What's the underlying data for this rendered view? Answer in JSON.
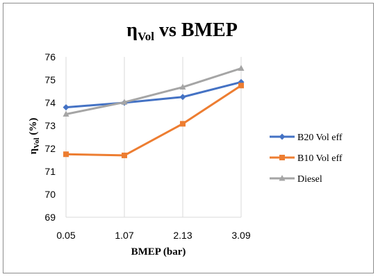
{
  "chart_data": {
    "type": "line",
    "title_main": "η",
    "title_sub": "Vol",
    "title_rest": " vs BMEP",
    "xlabel": "BMEP (bar)",
    "ylabel_main": "η",
    "ylabel_sub": "Vol",
    "ylabel_rest": " (%)",
    "categories": [
      "0.05",
      "1.07",
      "2.13",
      "3.09"
    ],
    "ylim": [
      69,
      76
    ],
    "yticks": [
      69,
      70,
      71,
      72,
      73,
      74,
      75,
      76
    ],
    "grid": "vertical",
    "legend_position": "right",
    "series": [
      {
        "name": "B20  Vol eff",
        "color": "#4472c4",
        "marker": "diamond",
        "values": [
          73.8,
          74.0,
          74.25,
          74.9
        ]
      },
      {
        "name": "B10 Vol eff",
        "color": "#ed7d31",
        "marker": "square",
        "values": [
          71.75,
          71.7,
          73.08,
          74.75
        ]
      },
      {
        "name": "Diesel",
        "color": "#a5a5a5",
        "marker": "triangle",
        "values": [
          73.5,
          74.02,
          74.68,
          75.5
        ]
      }
    ]
  }
}
